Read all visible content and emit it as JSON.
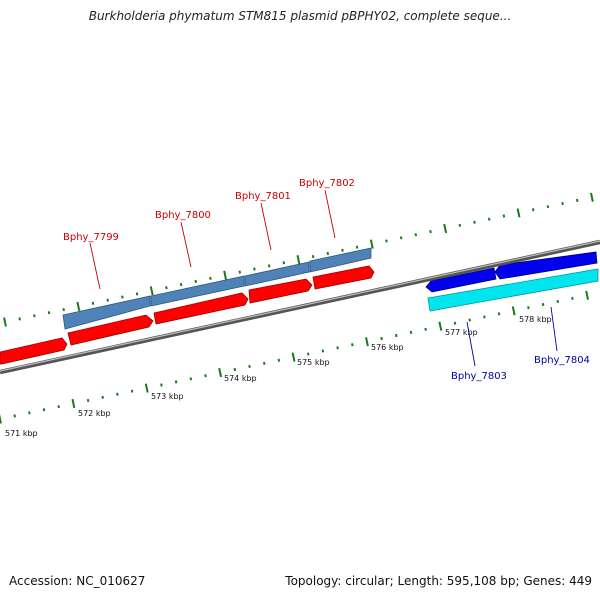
{
  "title": "Burkholderia phymatum STM815 plasmid pBPHY02, complete seque...",
  "footer": {
    "accession": "Accession: NC_010627",
    "summary": "Topology: circular; Length: 595,108 bp; Genes: 449"
  },
  "colors": {
    "forward_gene": "#ff0000",
    "forward_label": "#cc0000",
    "reverse_gene": "#0000ee",
    "reverse_label": "#0000aa",
    "cds_bar": "#4f82b6",
    "cds_bar_alt": "#00e5ee",
    "backbone": "#888888",
    "tick": "#1a7a1a"
  },
  "scale_labels": [
    {
      "text": "571 kbp",
      "kbp": 571
    },
    {
      "text": "572 kbp",
      "kbp": 572
    },
    {
      "text": "573 kbp",
      "kbp": 573
    },
    {
      "text": "574 kbp",
      "kbp": 574
    },
    {
      "text": "575 kbp",
      "kbp": 575
    },
    {
      "text": "576 kbp",
      "kbp": 576
    },
    {
      "text": "577 kbp",
      "kbp": 577
    },
    {
      "text": "578 kbp",
      "kbp": 578
    }
  ],
  "genes": [
    {
      "name": "Bphy_7799",
      "strand": "forward"
    },
    {
      "name": "Bphy_7800",
      "strand": "forward"
    },
    {
      "name": "Bphy_7801",
      "strand": "forward"
    },
    {
      "name": "Bphy_7802",
      "strand": "forward"
    },
    {
      "name": "Bphy_7803",
      "strand": "reverse"
    },
    {
      "name": "Bphy_7804",
      "strand": "reverse"
    }
  ]
}
